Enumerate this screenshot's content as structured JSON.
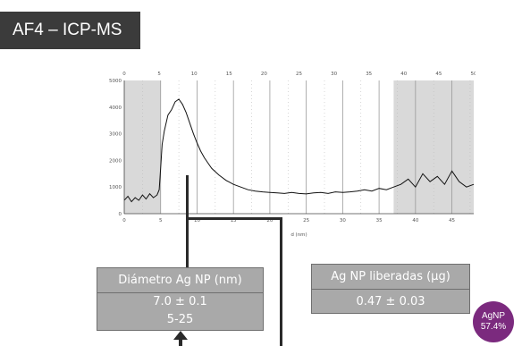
{
  "slide": {
    "title": "AF4 – ICP-MS"
  },
  "diameter_box": {
    "label": "Diámetro Ag NP (nm)",
    "value": "7.0 ± 0.1",
    "range": "5-25"
  },
  "released_box": {
    "label": "Ag NP liberadas (µg)",
    "value": "0.47 ± 0.03"
  },
  "badge": {
    "line1": "AgNP",
    "line2": "57.4%",
    "color": "#7b2a7e"
  },
  "chart_data": {
    "type": "line",
    "title": "",
    "xlabel": "d (nm)",
    "ylabel": "",
    "xlim": [
      0,
      48
    ],
    "ylim": [
      0,
      5000
    ],
    "top_axis_ticks": [
      "0",
      "5",
      "10",
      "15",
      "20",
      "25",
      "30",
      "35",
      "40",
      "45",
      "50"
    ],
    "bottom_axis_ticks": [
      "0",
      "5",
      "10",
      "15",
      "20",
      "25",
      "30",
      "35",
      "40",
      "45"
    ],
    "y_ticks": [
      "0",
      "1000",
      "2000",
      "3000",
      "4000",
      "5000"
    ],
    "shaded_regions": [
      [
        0,
        5
      ],
      [
        37,
        48
      ]
    ],
    "grid": "vertical",
    "series": [
      {
        "x": [
          0,
          0.5,
          1,
          1.5,
          2,
          2.5,
          3,
          3.5,
          4,
          4.5,
          4.8,
          5.0,
          5.2,
          5.5,
          6,
          6.5,
          7,
          7.5,
          8,
          8.5,
          9,
          9.5,
          10,
          10.5,
          11,
          11.5,
          12,
          13,
          14,
          15,
          16,
          17,
          18,
          19,
          20,
          21,
          22,
          23,
          24,
          25,
          26,
          27,
          28,
          29,
          30,
          31,
          32,
          33,
          34,
          35,
          36,
          37,
          38,
          39,
          40,
          41,
          42,
          43,
          44,
          45,
          46,
          47,
          48
        ],
        "y": [
          500,
          650,
          450,
          600,
          500,
          700,
          550,
          750,
          600,
          700,
          900,
          1700,
          2600,
          3100,
          3700,
          3900,
          4200,
          4300,
          4100,
          3800,
          3400,
          3000,
          2650,
          2350,
          2100,
          1900,
          1700,
          1450,
          1250,
          1100,
          1000,
          900,
          850,
          820,
          800,
          780,
          760,
          800,
          760,
          740,
          780,
          800,
          760,
          820,
          800,
          820,
          850,
          900,
          850,
          950,
          900,
          1000,
          1100,
          1300,
          1000,
          1500,
          1200,
          1400,
          1100,
          1600,
          1200,
          1000,
          1100
        ]
      }
    ]
  }
}
